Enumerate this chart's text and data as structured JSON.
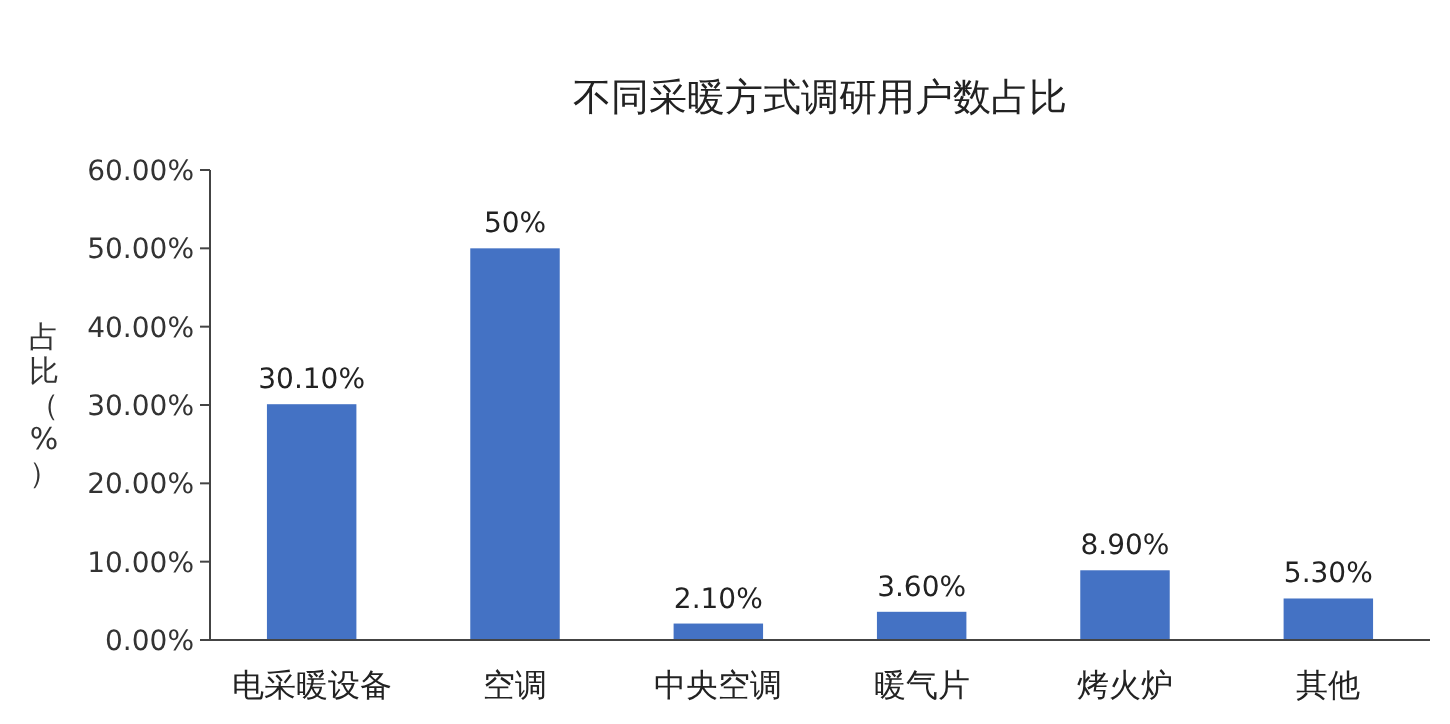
{
  "chart_data": {
    "type": "bar",
    "title": "不同采暖方式调研用户数占比",
    "ylabel": "占比（%）",
    "categories": [
      "电采暖设备",
      "空调",
      "中央空调",
      "暖气片",
      "烤火炉",
      "其他"
    ],
    "values": [
      30.1,
      50,
      2.1,
      3.6,
      8.9,
      5.3
    ],
    "value_labels": [
      "30.10%",
      "50%",
      "2.10%",
      "3.60%",
      "8.90%",
      "5.30%"
    ],
    "color": "#4472c4",
    "ylim": [
      0,
      60
    ],
    "yticks": [
      {
        "value": 0,
        "label": "0.00%"
      },
      {
        "value": 10,
        "label": "10.00%"
      },
      {
        "value": 20,
        "label": "20.00%"
      },
      {
        "value": 30,
        "label": "30.00%"
      },
      {
        "value": 40,
        "label": "40.00%"
      },
      {
        "value": 50,
        "label": "50.00%"
      },
      {
        "value": 60,
        "label": "60.00%"
      }
    ],
    "grid": false
  }
}
